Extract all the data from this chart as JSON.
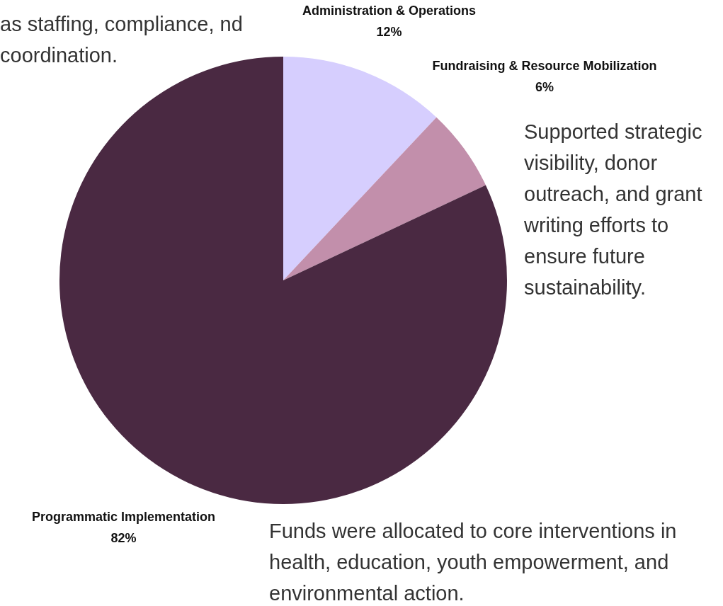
{
  "chart_data": {
    "type": "pie",
    "categories": [
      "Administration & Operations",
      "Fundraising & Resource Mobilization",
      "Programmatic Implementation"
    ],
    "values": [
      12,
      6,
      82
    ],
    "colors": [
      "#d6cefe",
      "#c28fab",
      "#4a2942"
    ],
    "value_labels": [
      "12%",
      "6%",
      "82%"
    ],
    "legend": false,
    "annotations": [
      "as staffing, compliance, nd coordination.",
      "Supported strategic visibility, donor outreach, and grant writing efforts to ensure future sustainability.",
      "Funds were allocated to core interventions in health, education, youth empowerment, and environmental action."
    ]
  }
}
